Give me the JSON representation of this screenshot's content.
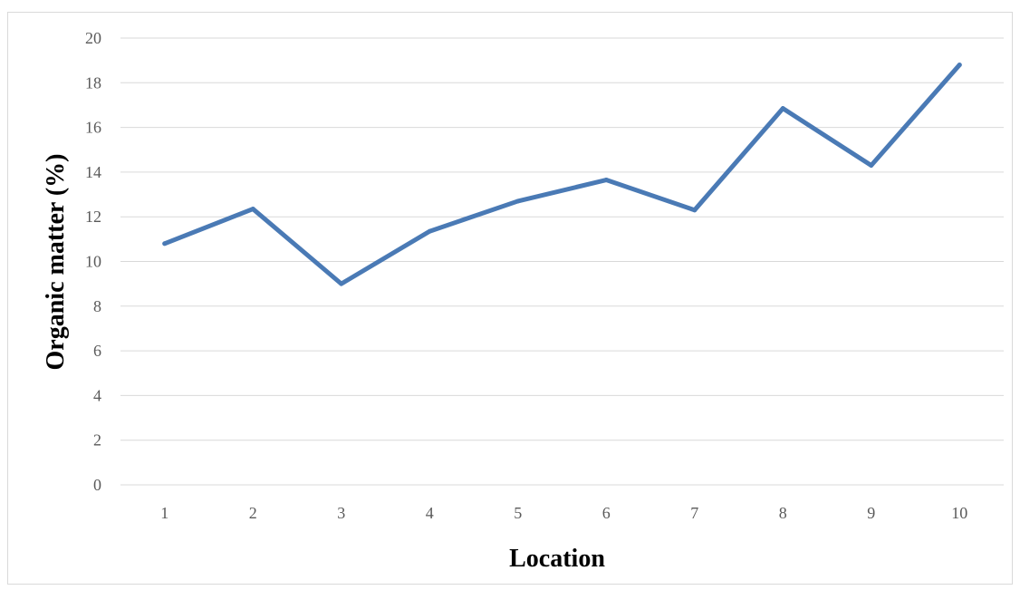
{
  "chart_data": {
    "type": "line",
    "title": "",
    "xlabel": "Location",
    "ylabel": "Organic matter (%)",
    "categories": [
      "1",
      "2",
      "3",
      "4",
      "5",
      "6",
      "7",
      "8",
      "9",
      "10"
    ],
    "series": [
      {
        "values": [
          10.8,
          12.35,
          9.0,
          11.35,
          12.7,
          13.65,
          12.3,
          16.85,
          14.3,
          18.8
        ]
      }
    ],
    "ylim": [
      0,
      20
    ],
    "yticks": [
      "0",
      "2",
      "4",
      "6",
      "8",
      "10",
      "12",
      "14",
      "16",
      "18",
      "20"
    ],
    "grid": true,
    "legend": "none",
    "colors": {
      "line": "#4a7ab5",
      "grid": "#d9d9d9",
      "axis": "#d9d9d9"
    }
  }
}
